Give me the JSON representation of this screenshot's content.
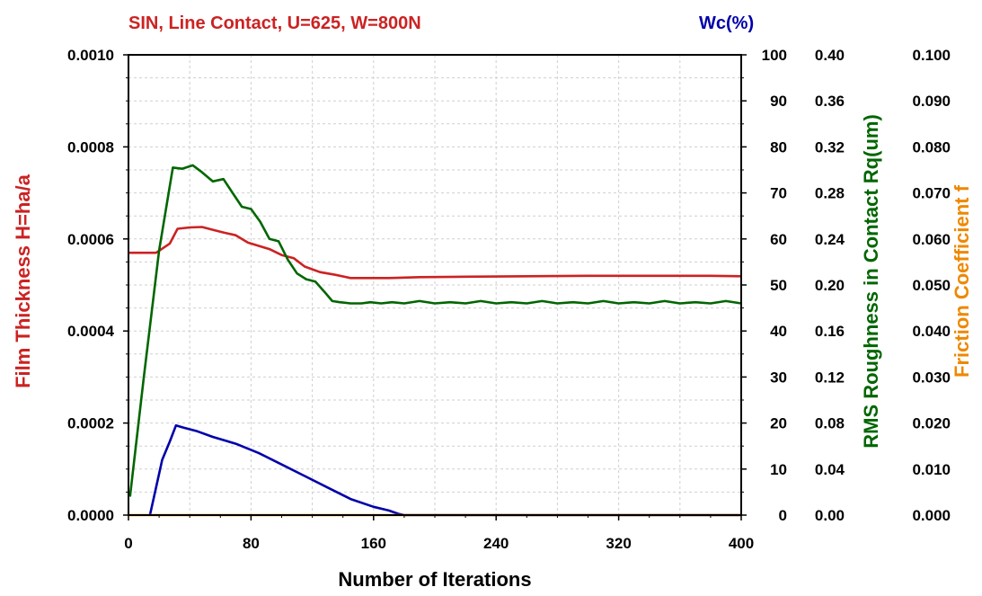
{
  "chart_data": {
    "type": "line",
    "title": "SIN, Line Contact, U=625, W=800N",
    "wc_title": "Wc(%)",
    "xlabel": "Number of Iterations",
    "xlim": [
      0,
      400
    ],
    "x_ticks": [
      "0",
      "80",
      "160",
      "240",
      "320",
      "400"
    ],
    "grid": true,
    "axes": {
      "left": {
        "label": "Film Thickness H=ha/a",
        "range": [
          0,
          0.001
        ],
        "ticks": [
          "0.0000",
          "0.0002",
          "0.0004",
          "0.0006",
          "0.0008",
          "0.0010"
        ],
        "color": "#cc2222"
      },
      "right1": {
        "label": "Wc(%)",
        "range": [
          0,
          100
        ],
        "ticks": [
          "0",
          "10",
          "20",
          "30",
          "40",
          "50",
          "60",
          "70",
          "80",
          "90",
          "100"
        ],
        "color": "#0000aa"
      },
      "right2": {
        "label": "RMS Roughness in Contact Rq(um)",
        "range": [
          0,
          0.4
        ],
        "ticks": [
          "0.00",
          "0.04",
          "0.08",
          "0.12",
          "0.16",
          "0.20",
          "0.24",
          "0.28",
          "0.32",
          "0.36",
          "0.40"
        ],
        "color": "#006600"
      },
      "right3": {
        "label": "Friction Coefficient f",
        "range": [
          0,
          0.1
        ],
        "ticks": [
          "0.000",
          "0.010",
          "0.020",
          "0.030",
          "0.040",
          "0.050",
          "0.060",
          "0.070",
          "0.080",
          "0.090",
          "0.100"
        ],
        "color": "#ee8800"
      }
    },
    "series": [
      {
        "name": "Film Thickness H=ha/a",
        "axis": "left",
        "color": "#cc2222",
        "x": [
          0,
          18,
          27,
          32,
          40,
          48,
          55,
          62,
          70,
          78,
          85,
          92,
          100,
          108,
          115,
          125,
          135,
          145,
          155,
          170,
          190,
          220,
          260,
          300,
          340,
          380,
          400
        ],
        "y": [
          0.00057,
          0.00057,
          0.00059,
          0.000622,
          0.000625,
          0.000626,
          0.00062,
          0.000614,
          0.000608,
          0.000592,
          0.000585,
          0.000578,
          0.000565,
          0.000558,
          0.00054,
          0.000528,
          0.000522,
          0.000515,
          0.000515,
          0.000515,
          0.000517,
          0.000518,
          0.000519,
          0.00052,
          0.00052,
          0.00052,
          0.000519
        ]
      },
      {
        "name": "Wc(%)",
        "axis": "right1",
        "color": "#0000aa",
        "x": [
          14,
          18,
          22,
          27,
          31,
          36,
          45,
          55,
          70,
          85,
          100,
          115,
          130,
          145,
          160,
          170,
          176,
          180,
          185,
          400
        ],
        "y": [
          0,
          6,
          12,
          16,
          19.5,
          19,
          18.2,
          17,
          15.5,
          13.5,
          11,
          8.5,
          6,
          3.5,
          1.8,
          1,
          0.3,
          0,
          0,
          0
        ]
      },
      {
        "name": "RMS Roughness in Contact Rq(um)",
        "axis": "right2",
        "color": "#006600",
        "x": [
          1,
          10,
          20,
          29,
          35,
          42,
          48,
          55,
          62,
          68,
          74,
          80,
          86,
          92,
          98,
          104,
          110,
          116,
          122,
          128,
          133,
          138,
          145,
          152,
          158,
          165,
          172,
          180,
          190,
          200,
          210,
          220,
          230,
          240,
          250,
          260,
          270,
          280,
          290,
          300,
          310,
          320,
          330,
          340,
          350,
          360,
          370,
          380,
          390,
          400
        ],
        "y": [
          0.016,
          0.12,
          0.23,
          0.302,
          0.301,
          0.304,
          0.298,
          0.29,
          0.292,
          0.28,
          0.268,
          0.266,
          0.255,
          0.24,
          0.238,
          0.222,
          0.21,
          0.205,
          0.203,
          0.194,
          0.186,
          0.185,
          0.184,
          0.184,
          0.185,
          0.184,
          0.185,
          0.184,
          0.186,
          0.184,
          0.185,
          0.184,
          0.186,
          0.184,
          0.185,
          0.184,
          0.186,
          0.184,
          0.185,
          0.184,
          0.186,
          0.184,
          0.185,
          0.184,
          0.186,
          0.184,
          0.185,
          0.184,
          0.186,
          0.184
        ]
      },
      {
        "name": "Friction Coefficient f",
        "axis": "right3",
        "color": "#ee8800",
        "x": [
          0,
          400
        ],
        "y": [
          0,
          0
        ]
      }
    ]
  }
}
